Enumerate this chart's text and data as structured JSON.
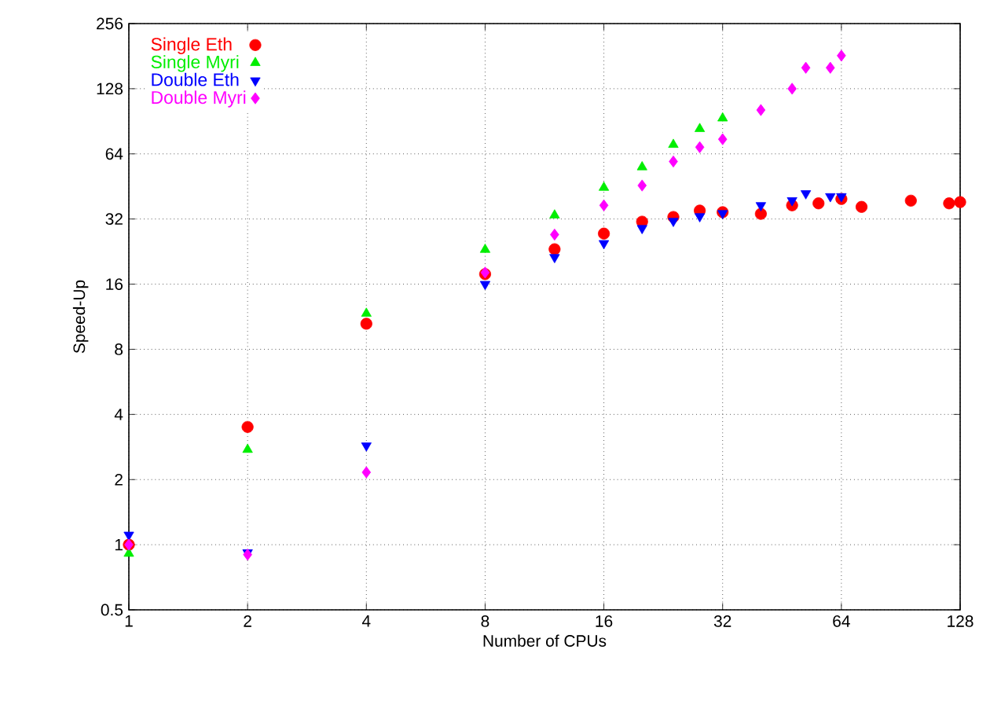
{
  "chart_data": {
    "type": "scatter",
    "xlabel": "Number of CPUs",
    "ylabel": "Speed-Up",
    "log": "xy",
    "grid": true,
    "legend": "top left",
    "xlim": [
      1,
      128
    ],
    "xticks": [
      1,
      2,
      4,
      8,
      16,
      32,
      64,
      128
    ],
    "ylim": [
      0.5,
      256
    ],
    "yticks": [
      0.5,
      1,
      2,
      4,
      8,
      16,
      32,
      64,
      128,
      256
    ],
    "series": [
      {
        "name": "Single Eth",
        "color": "#ff0000",
        "marker": "circle",
        "x": [
          1,
          2,
          4,
          8,
          12,
          16,
          20,
          24,
          28,
          32,
          40,
          48,
          56,
          64,
          72,
          96,
          120,
          128
        ],
        "values": [
          1,
          3.5,
          10.5,
          17.8,
          23.2,
          27.4,
          31.1,
          32.7,
          35,
          34.4,
          33.8,
          37,
          37.8,
          39.6,
          36.4,
          38.9,
          37.8,
          38.3
        ]
      },
      {
        "name": "Single Myri",
        "color": "#00ee00",
        "marker": "triangle",
        "x": [
          1,
          2,
          4,
          8,
          12,
          16,
          20,
          24,
          28,
          32
        ],
        "values": [
          0.91,
          2.75,
          11.7,
          23.1,
          33.3,
          44.7,
          55.6,
          70.6,
          83.5,
          93.5
        ]
      },
      {
        "name": "Double Eth",
        "color": "#0000ff",
        "marker": "triangle-down",
        "x": [
          1,
          2,
          4,
          8,
          12,
          16,
          20,
          24,
          28,
          32,
          40,
          48,
          52,
          60,
          64
        ],
        "values": [
          1.11,
          0.92,
          2.87,
          16,
          21.3,
          24.7,
          29,
          31.3,
          32.9,
          34,
          37,
          39,
          42,
          40.7,
          40.7
        ]
      },
      {
        "name": "Double Myri",
        "color": "#ff00ff",
        "marker": "diamond",
        "x": [
          1,
          2,
          4,
          8,
          12,
          16,
          20,
          24,
          28,
          32,
          40,
          48,
          52,
          60,
          64
        ],
        "values": [
          1,
          0.9,
          2.16,
          18.1,
          27.1,
          37,
          45.7,
          59,
          68.7,
          74.8,
          102,
          128,
          160,
          160,
          182
        ]
      }
    ]
  }
}
